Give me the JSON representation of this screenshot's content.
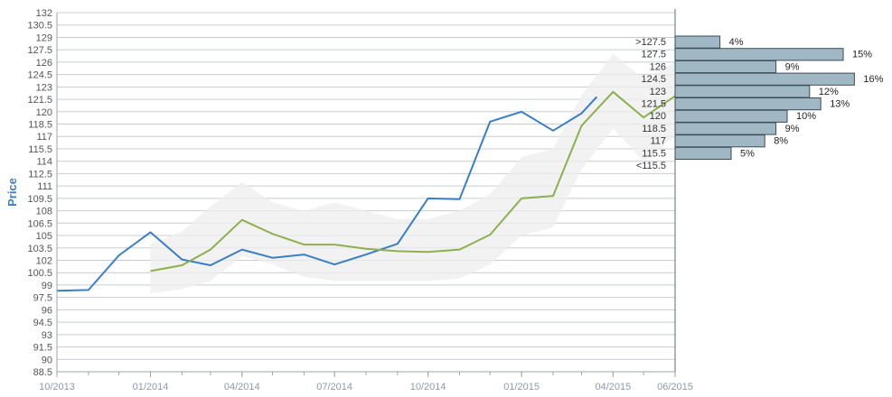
{
  "chart_data": {
    "type": "line",
    "ylabel": "Price",
    "xlabel": "",
    "ylim": [
      88.5,
      132
    ],
    "y_ticks": [
      "132",
      "130.5",
      "129",
      "127.5",
      "126",
      "124.5",
      "123",
      "121.5",
      "120",
      "118.5",
      "117",
      "115.5",
      "114",
      "112.5",
      "111",
      "109.5",
      "108",
      "106.5",
      "105",
      "103.5",
      "102",
      "100.5",
      "99",
      "97.5",
      "96",
      "94.5",
      "93",
      "91.5",
      "90",
      "88.5"
    ],
    "x_ticks": [
      "10/2013",
      "01/2014",
      "04/2014",
      "07/2014",
      "10/2014",
      "01/2015",
      "04/2015",
      "06/2015"
    ],
    "grid": true,
    "series": [
      {
        "key": "actual",
        "color": "#3a7ec8",
        "points": [
          [
            "2013-10-01",
            98.3
          ],
          [
            "2013-11-01",
            98.4
          ],
          [
            "2013-12-01",
            102.6
          ],
          [
            "2014-01-01",
            105.4
          ],
          [
            "2014-02-01",
            102.1
          ],
          [
            "2014-03-01",
            101.4
          ],
          [
            "2014-04-01",
            103.3
          ],
          [
            "2014-05-01",
            102.3
          ],
          [
            "2014-06-01",
            102.7
          ],
          [
            "2014-07-01",
            101.5
          ],
          [
            "2014-08-01",
            102.7
          ],
          [
            "2014-09-01",
            104.0
          ],
          [
            "2014-10-01",
            109.5
          ],
          [
            "2014-11-01",
            109.4
          ],
          [
            "2014-12-01",
            118.8
          ],
          [
            "2015-01-01",
            120.0
          ],
          [
            "2015-02-01",
            117.7
          ],
          [
            "2015-03-01",
            119.8
          ],
          [
            "2015-03-16",
            121.8
          ]
        ]
      },
      {
        "key": "forecast",
        "color": "#8db04f",
        "points": [
          [
            "2014-01-01",
            100.7
          ],
          [
            "2014-02-01",
            101.4
          ],
          [
            "2014-03-01",
            103.3
          ],
          [
            "2014-04-01",
            106.9
          ],
          [
            "2014-05-01",
            105.2
          ],
          [
            "2014-06-01",
            103.9
          ],
          [
            "2014-07-01",
            103.9
          ],
          [
            "2014-08-01",
            103.4
          ],
          [
            "2014-09-01",
            103.1
          ],
          [
            "2014-10-01",
            103.0
          ],
          [
            "2014-11-01",
            103.3
          ],
          [
            "2014-12-01",
            105.1
          ],
          [
            "2015-01-01",
            109.5
          ],
          [
            "2015-02-01",
            109.8
          ],
          [
            "2015-03-01",
            118.3
          ],
          [
            "2015-04-01",
            122.4
          ],
          [
            "2015-05-01",
            119.3
          ],
          [
            "2015-06-01",
            121.9
          ]
        ]
      }
    ],
    "band": {
      "color": "#eeeeee",
      "upper": [
        [
          "2014-01-01",
          104.0
        ],
        [
          "2014-02-01",
          105.5
        ],
        [
          "2014-03-01",
          108.5
        ],
        [
          "2014-04-01",
          111.5
        ],
        [
          "2014-05-01",
          109.0
        ],
        [
          "2014-06-01",
          108.0
        ],
        [
          "2014-07-01",
          109.0
        ],
        [
          "2014-08-01",
          108.0
        ],
        [
          "2014-09-01",
          107.0
        ],
        [
          "2014-10-01",
          107.0
        ],
        [
          "2014-11-01",
          108.0
        ],
        [
          "2014-12-01",
          110.0
        ],
        [
          "2015-01-01",
          114.5
        ],
        [
          "2015-02-01",
          115.5
        ],
        [
          "2015-03-01",
          122.0
        ],
        [
          "2015-04-01",
          127.0
        ],
        [
          "2015-05-01",
          124.0
        ],
        [
          "2015-06-01",
          126.0
        ]
      ],
      "lower": [
        [
          "2014-01-01",
          98.0
        ],
        [
          "2014-02-01",
          98.5
        ],
        [
          "2014-03-01",
          99.5
        ],
        [
          "2014-04-01",
          102.5
        ],
        [
          "2014-05-01",
          101.5
        ],
        [
          "2014-06-01",
          100.0
        ],
        [
          "2014-07-01",
          99.5
        ],
        [
          "2014-08-01",
          99.5
        ],
        [
          "2014-09-01",
          99.5
        ],
        [
          "2014-10-01",
          99.5
        ],
        [
          "2014-11-01",
          99.8
        ],
        [
          "2014-12-01",
          101.5
        ],
        [
          "2015-01-01",
          105.0
        ],
        [
          "2015-02-01",
          106.0
        ],
        [
          "2015-03-01",
          113.0
        ],
        [
          "2015-04-01",
          118.0
        ],
        [
          "2015-05-01",
          114.0
        ],
        [
          "2015-06-01",
          117.0
        ]
      ]
    },
    "histogram": {
      "color": "#a0b8c4",
      "bins": [
        {
          "label": ">127.5",
          "value": 4,
          "pct": "4%"
        },
        {
          "label": "127.5",
          "value": 15,
          "pct": "15%"
        },
        {
          "label": "126",
          "value": 9,
          "pct": "9%"
        },
        {
          "label": "124.5",
          "value": 16,
          "pct": "16%"
        },
        {
          "label": "123",
          "value": 12,
          "pct": "12%"
        },
        {
          "label": "121.5",
          "value": 13,
          "pct": "13%"
        },
        {
          "label": "120",
          "value": 10,
          "pct": "10%"
        },
        {
          "label": "118.5",
          "value": 9,
          "pct": "9%"
        },
        {
          "label": "117",
          "value": 8,
          "pct": "8%"
        },
        {
          "label": "115.5",
          "value": 5,
          "pct": "5%"
        },
        {
          "label": "<115.5",
          "value": null,
          "pct": ""
        }
      ]
    }
  }
}
